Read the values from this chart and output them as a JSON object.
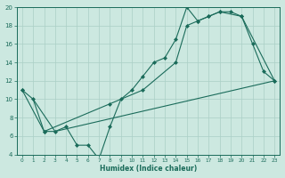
{
  "line1_x": [
    0,
    1,
    2,
    3,
    4,
    5,
    6,
    7,
    8,
    9,
    10,
    11,
    12,
    13,
    14,
    15,
    16,
    17,
    18,
    19,
    20,
    21,
    22,
    23
  ],
  "line1_y": [
    11,
    10,
    6.5,
    6.5,
    7,
    5,
    5,
    3.5,
    7,
    10,
    11,
    12.5,
    14,
    14.5,
    16.5,
    20,
    18.5,
    19,
    19.5,
    19.5,
    19,
    16,
    13,
    12
  ],
  "line2_x": [
    0,
    2,
    8,
    11,
    14,
    15,
    16,
    17,
    18,
    20,
    23
  ],
  "line2_y": [
    11,
    6.5,
    9.5,
    11,
    14,
    18,
    18.5,
    19,
    19.5,
    19,
    12
  ],
  "line3_x": [
    1,
    3,
    23
  ],
  "line3_y": [
    10,
    6.5,
    12
  ],
  "line_color": "#1a6b5a",
  "bg_color": "#cce8e0",
  "grid_color": "#aacfc6",
  "xlabel": "Humidex (Indice chaleur)",
  "xlim": [
    -0.5,
    23.5
  ],
  "ylim": [
    4,
    20
  ],
  "xticks": [
    0,
    1,
    2,
    3,
    4,
    5,
    6,
    7,
    8,
    9,
    10,
    11,
    12,
    13,
    14,
    15,
    16,
    17,
    18,
    19,
    20,
    21,
    22,
    23
  ],
  "yticks": [
    4,
    6,
    8,
    10,
    12,
    14,
    16,
    18,
    20
  ]
}
